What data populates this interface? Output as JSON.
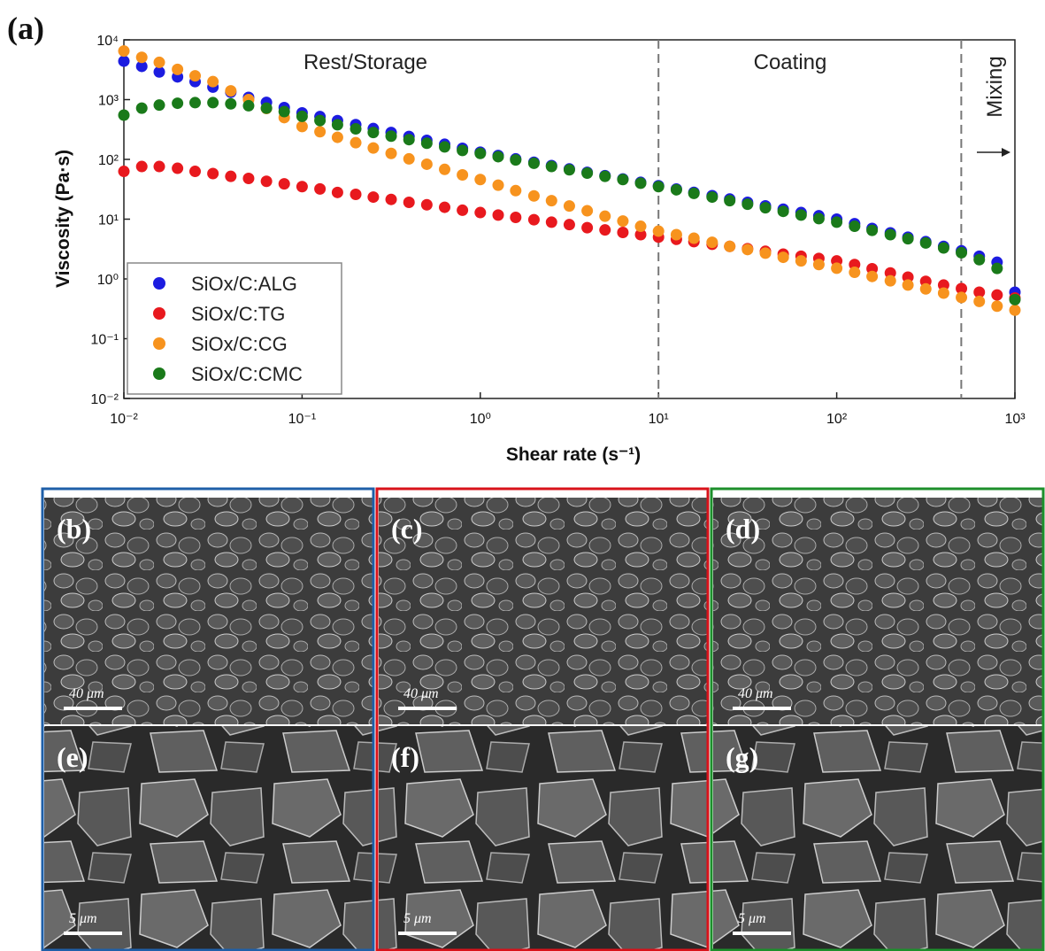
{
  "chart_data": {
    "type": "scatter",
    "label": "(a)",
    "xlabel": "Shear rate (s⁻¹)",
    "ylabel": "Viscosity (Pa·s)",
    "xscale": "log",
    "yscale": "log",
    "xlim": [
      0.01,
      1000
    ],
    "ylim": [
      0.01,
      10000
    ],
    "xticks": [
      {
        "value": 0.01,
        "label": "10⁻²"
      },
      {
        "value": 0.1,
        "label": "10⁻¹"
      },
      {
        "value": 1,
        "label": "10⁰"
      },
      {
        "value": 10,
        "label": "10¹"
      },
      {
        "value": 100,
        "label": "10²"
      },
      {
        "value": 1000,
        "label": "10³"
      }
    ],
    "yticks": [
      {
        "value": 0.01,
        "label": "10⁻²"
      },
      {
        "value": 0.1,
        "label": "10⁻¹"
      },
      {
        "value": 1,
        "label": "10⁰"
      },
      {
        "value": 10,
        "label": "10¹"
      },
      {
        "value": 100,
        "label": "10²"
      },
      {
        "value": 1000,
        "label": "10³"
      },
      {
        "value": 10000,
        "label": "10⁴"
      }
    ],
    "vlines": [
      10,
      500
    ],
    "annotations": [
      "Rest/Storage",
      "Coating",
      "Mixing"
    ],
    "legend": "lower left",
    "x": [
      0.01,
      0.0126,
      0.0158,
      0.02,
      0.0251,
      0.0316,
      0.0398,
      0.0501,
      0.0631,
      0.0794,
      0.1,
      0.126,
      0.158,
      0.2,
      0.251,
      0.316,
      0.398,
      0.501,
      0.631,
      0.794,
      1,
      1.26,
      1.58,
      2,
      2.51,
      3.16,
      3.98,
      5.01,
      6.31,
      7.94,
      10,
      12.6,
      15.8,
      20,
      25.1,
      31.6,
      39.8,
      50.1,
      63.1,
      79.4,
      100,
      126,
      158,
      200,
      251,
      316,
      398,
      501,
      631,
      794,
      1000
    ],
    "series": [
      {
        "name": "SiOx/C:ALG",
        "color": "#1c1ce0",
        "values": [
          4400,
          3600,
          2900,
          2400,
          2000,
          1620,
          1330,
          1090,
          900,
          735,
          600,
          520,
          445,
          382,
          328,
          282,
          242,
          208,
          179,
          153,
          132,
          116,
          102,
          89.5,
          78.7,
          69.2,
          60.8,
          53.5,
          47,
          41.3,
          36.3,
          31.9,
          28.1,
          24.7,
          21.7,
          19.1,
          16.7,
          14.7,
          12.9,
          11.4,
          10,
          8.4,
          7,
          5.9,
          5,
          4.2,
          3.5,
          2.95,
          2.4,
          1.9,
          0.6
        ]
      },
      {
        "name": "SiOx/C:TG",
        "color": "#e8191e",
        "values": [
          63,
          76,
          76,
          71,
          63,
          58,
          52,
          48,
          43,
          39,
          35,
          32,
          28,
          26,
          23.4,
          21.4,
          19.1,
          17.4,
          15.8,
          14.1,
          12.9,
          11.7,
          10.7,
          9.8,
          8.9,
          8.1,
          7.2,
          6.6,
          6,
          5.5,
          5,
          4.6,
          4.2,
          3.8,
          3.5,
          3.2,
          2.9,
          2.6,
          2.4,
          2.2,
          2,
          1.74,
          1.48,
          1.26,
          1.07,
          0.91,
          0.79,
          0.69,
          0.6,
          0.54,
          0.48
        ]
      },
      {
        "name": "SiOx/C:CG",
        "color": "#f7931e",
        "values": [
          6500,
          5100,
          4200,
          3200,
          2500,
          2000,
          1400,
          1000,
          710,
          500,
          355,
          290,
          234,
          190,
          155,
          126,
          102,
          83,
          68,
          55,
          46,
          37,
          30,
          24.5,
          20.4,
          16.6,
          13.8,
          11.2,
          9.3,
          7.6,
          6.3,
          5.5,
          4.8,
          4.1,
          3.5,
          3.1,
          2.7,
          2.3,
          2,
          1.74,
          1.51,
          1.29,
          1.1,
          0.93,
          0.79,
          0.68,
          0.58,
          0.49,
          0.42,
          0.35,
          0.3
        ]
      },
      {
        "name": "SiOx/C:CMC",
        "color": "#1a7a1a",
        "values": [
          550,
          720,
          810,
          870,
          890,
          890,
          850,
          790,
          720,
          630,
          525,
          447,
          380,
          324,
          282,
          245,
          214,
          186,
          162,
          141,
          126,
          111,
          98,
          86,
          76,
          67,
          59,
          52,
          46,
          40,
          35,
          31,
          27,
          23.4,
          20.4,
          17.8,
          15.5,
          13.5,
          11.7,
          10.2,
          8.9,
          7.6,
          6.5,
          5.5,
          4.7,
          4,
          3.3,
          2.75,
          2.1,
          1.5,
          0.45
        ]
      }
    ]
  },
  "panels": [
    {
      "label": "(b)",
      "scale": "40 μm"
    },
    {
      "label": "(c)",
      "scale": "40 μm"
    },
    {
      "label": "(d)",
      "scale": "40 μm"
    },
    {
      "label": "(e)",
      "scale": "5 μm"
    },
    {
      "label": "(f)",
      "scale": "5 μm"
    },
    {
      "label": "(g)",
      "scale": "5 μm"
    }
  ]
}
